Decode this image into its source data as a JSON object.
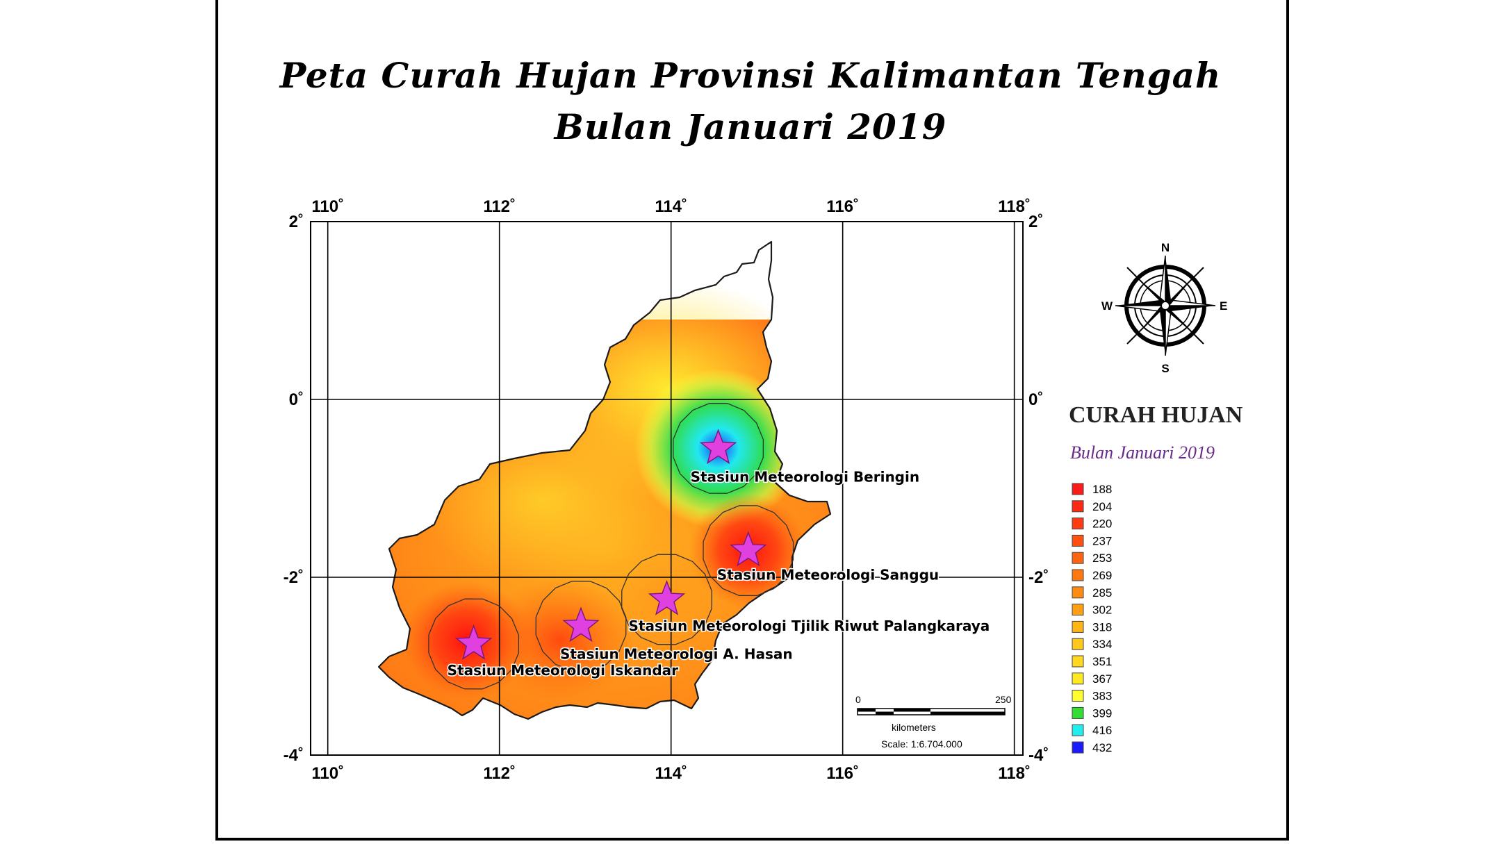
{
  "title": {
    "line1": "Peta Curah Hujan Provinsi Kalimantan Tengah",
    "line2": "Bulan Januari 2019"
  },
  "axes": {
    "lon_labels": [
      "110˚",
      "112˚",
      "114˚",
      "116˚",
      "118˚"
    ],
    "lat_labels": [
      "2˚",
      "0˚",
      "-2˚",
      "-4˚"
    ],
    "lon_values": [
      110,
      112,
      114,
      116,
      118
    ],
    "lat_values": [
      2,
      0,
      -2,
      -4
    ]
  },
  "stations": [
    {
      "name": "Stasiun Meteorologi Beringin",
      "lon": 114.55,
      "lat": -0.55
    },
    {
      "name": "Stasiun Meteorologi Sanggu",
      "lon": 114.9,
      "lat": -1.7
    },
    {
      "name": "Stasiun Meteorologi  Tjilik Riwut Palangkaraya",
      "lon": 113.95,
      "lat": -2.25
    },
    {
      "name": "Stasiun Meteorologi A. Hasan",
      "lon": 112.95,
      "lat": -2.55
    },
    {
      "name": "Stasiun Meteorologi Iskandar",
      "lon": 111.7,
      "lat": -2.75
    }
  ],
  "compass": {
    "n": "N",
    "s": "S",
    "e": "E",
    "w": "W"
  },
  "legend": {
    "title": "CURAH HUJAN",
    "subtitle": "Bulan Januari 2019",
    "items": [
      {
        "label": "188",
        "color": "#ff1a1a"
      },
      {
        "label": "204",
        "color": "#ff2a14"
      },
      {
        "label": "220",
        "color": "#ff3c12"
      },
      {
        "label": "237",
        "color": "#ff5010"
      },
      {
        "label": "253",
        "color": "#ff6410"
      },
      {
        "label": "269",
        "color": "#ff7810"
      },
      {
        "label": "285",
        "color": "#ff8c12"
      },
      {
        "label": "302",
        "color": "#ffa014"
      },
      {
        "label": "318",
        "color": "#ffb418"
      },
      {
        "label": "334",
        "color": "#ffc81c"
      },
      {
        "label": "351",
        "color": "#ffd820"
      },
      {
        "label": "367",
        "color": "#ffe824"
      },
      {
        "label": "383",
        "color": "#ffff30"
      },
      {
        "label": "399",
        "color": "#33dd33"
      },
      {
        "label": "416",
        "color": "#22eeee"
      },
      {
        "label": "432",
        "color": "#1a1aff"
      }
    ]
  },
  "scale_bar": {
    "start": "0",
    "end": "250",
    "unit": "kilometers",
    "scale_text": "Scale: 1:6.704.000"
  }
}
